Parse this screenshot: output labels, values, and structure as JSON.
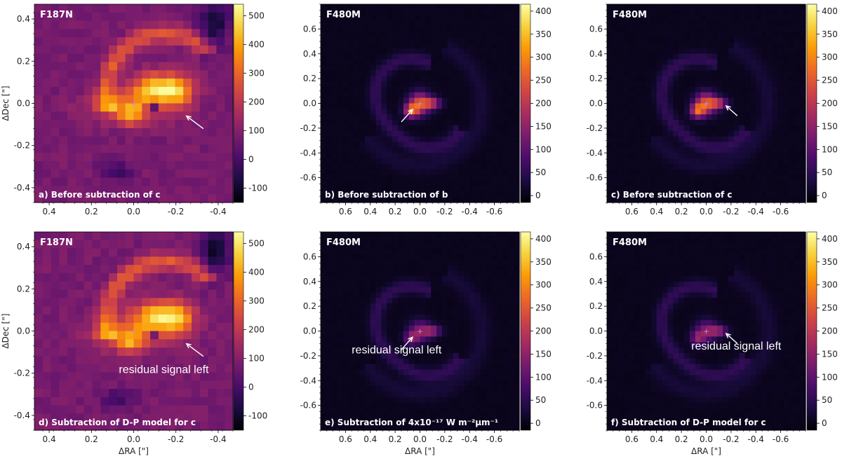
{
  "figure": {
    "colormap": [
      "#000004",
      "#1b0c41",
      "#4a0c6b",
      "#781c6d",
      "#a52c60",
      "#cf4446",
      "#ed6925",
      "#fb9b06",
      "#f7d13d",
      "#fcffa4"
    ],
    "arrow_color": "#ffffff",
    "center_marker_color": "#cc88dd"
  },
  "chart_data": [
    {
      "id": "a",
      "type": "heatmap",
      "band": "F187N",
      "caption": "a) Before subtraction of c",
      "annotation": "",
      "xlim": [
        0.47,
        -0.47
      ],
      "ylim": [
        -0.47,
        0.47
      ],
      "xticks": [
        "0.4",
        "0.2",
        "0.0",
        "-0.2",
        "-0.4"
      ],
      "xtick_values": [
        0.4,
        0.2,
        0.0,
        -0.2,
        -0.4
      ],
      "yticks": [
        "0.4",
        "0.2",
        "0.0",
        "-0.2",
        "-0.4"
      ],
      "ytick_values": [
        0.4,
        0.2,
        0.0,
        -0.2,
        -0.4
      ],
      "xlabel": "",
      "ylabel": "ΔDec [\"]",
      "colorbar": {
        "min": -150,
        "max": 540,
        "ticks": [
          "500",
          "400",
          "300",
          "200",
          "100",
          "0",
          "-100"
        ],
        "tick_values": [
          500,
          400,
          300,
          200,
          100,
          0,
          -100
        ]
      },
      "arrow": {
        "from": [
          -0.33,
          -0.12
        ],
        "to": [
          -0.25,
          -0.06
        ]
      }
    },
    {
      "id": "b",
      "type": "heatmap",
      "band": "F480M",
      "caption": "b) Before subtraction of b",
      "annotation": "",
      "xlim": [
        0.8,
        -0.8
      ],
      "ylim": [
        -0.8,
        0.8
      ],
      "xticks": [
        "0.6",
        "0.4",
        "0.2",
        "0.0",
        "-0.2",
        "-0.4",
        "-0.6"
      ],
      "xtick_values": [
        0.6,
        0.4,
        0.2,
        0.0,
        -0.2,
        -0.4,
        -0.6
      ],
      "yticks": [
        "0.6",
        "0.4",
        "0.2",
        "0.0",
        "-0.2",
        "-0.4",
        "-0.6"
      ],
      "ytick_values": [
        0.6,
        0.4,
        0.2,
        0.0,
        -0.2,
        -0.4,
        -0.6
      ],
      "xlabel": "",
      "ylabel": "",
      "colorbar": {
        "min": -15,
        "max": 415,
        "ticks": [
          "400",
          "350",
          "300",
          "250",
          "200",
          "150",
          "100",
          "50",
          "0"
        ],
        "tick_values": [
          400,
          350,
          300,
          250,
          200,
          150,
          100,
          50,
          0
        ]
      },
      "arrow": {
        "from": [
          0.15,
          -0.15
        ],
        "to": [
          0.06,
          -0.05
        ]
      }
    },
    {
      "id": "c",
      "type": "heatmap",
      "band": "F480M",
      "caption": "c) Before subtraction of c",
      "annotation": "",
      "xlim": [
        0.8,
        -0.8
      ],
      "ylim": [
        -0.8,
        0.8
      ],
      "xticks": [
        "0.6",
        "0.4",
        "0.2",
        "0.0",
        "-0.2",
        "-0.4",
        "-0.6"
      ],
      "xtick_values": [
        0.6,
        0.4,
        0.2,
        0.0,
        -0.2,
        -0.4,
        -0.6
      ],
      "yticks": [
        "0.6",
        "0.4",
        "0.2",
        "0.0",
        "-0.2",
        "-0.4",
        "-0.6"
      ],
      "ytick_values": [
        0.6,
        0.4,
        0.2,
        0.0,
        -0.2,
        -0.4,
        -0.6
      ],
      "xlabel": "",
      "ylabel": "",
      "colorbar": {
        "min": -15,
        "max": 415,
        "ticks": [
          "400",
          "350",
          "300",
          "250",
          "200",
          "150",
          "100",
          "50",
          "0"
        ],
        "tick_values": [
          400,
          350,
          300,
          250,
          200,
          150,
          100,
          50,
          0
        ]
      },
      "arrow": {
        "from": [
          -0.25,
          -0.1
        ],
        "to": [
          -0.16,
          -0.02
        ]
      }
    },
    {
      "id": "d",
      "type": "heatmap",
      "band": "F187N",
      "caption": "d) Subtraction of D-P model for c",
      "annotation": "residual signal left",
      "xlim": [
        0.47,
        -0.47
      ],
      "ylim": [
        -0.47,
        0.47
      ],
      "xticks": [
        "0.4",
        "0.2",
        "0.0",
        "-0.2",
        "-0.4"
      ],
      "xtick_values": [
        0.4,
        0.2,
        0.0,
        -0.2,
        -0.4
      ],
      "yticks": [
        "0.4",
        "0.2",
        "0.0",
        "-0.2",
        "-0.4"
      ],
      "ytick_values": [
        0.4,
        0.2,
        0.0,
        -0.2,
        -0.4
      ],
      "xlabel": "ΔRA [\"]",
      "ylabel": "ΔDec [\"]",
      "colorbar": {
        "min": -150,
        "max": 540,
        "ticks": [
          "500",
          "400",
          "300",
          "200",
          "100",
          "0",
          "-100"
        ],
        "tick_values": [
          500,
          400,
          300,
          200,
          100,
          0,
          -100
        ]
      },
      "arrow": {
        "from": [
          -0.33,
          -0.12
        ],
        "to": [
          -0.25,
          -0.06
        ]
      }
    },
    {
      "id": "e",
      "type": "heatmap",
      "band": "F480M",
      "caption": "e) Subtraction of 4x10⁻¹⁷ W m⁻²μm⁻¹",
      "annotation": "residual signal left",
      "xlim": [
        0.8,
        -0.8
      ],
      "ylim": [
        -0.8,
        0.8
      ],
      "xticks": [
        "0.6",
        "0.4",
        "0.2",
        "0.0",
        "-0.2",
        "-0.4",
        "-0.6"
      ],
      "xtick_values": [
        0.6,
        0.4,
        0.2,
        0.0,
        -0.2,
        -0.4,
        -0.6
      ],
      "yticks": [
        "0.6",
        "0.4",
        "0.2",
        "0.0",
        "-0.2",
        "-0.4",
        "-0.6"
      ],
      "ytick_values": [
        0.6,
        0.4,
        0.2,
        0.0,
        -0.2,
        -0.4,
        -0.6
      ],
      "xlabel": "ΔRA [\"]",
      "ylabel": "",
      "colorbar": {
        "min": -15,
        "max": 415,
        "ticks": [
          "400",
          "350",
          "300",
          "250",
          "200",
          "150",
          "100",
          "50",
          "0"
        ],
        "tick_values": [
          400,
          350,
          300,
          250,
          200,
          150,
          100,
          50,
          0
        ]
      },
      "arrow": {
        "from": [
          0.15,
          -0.15
        ],
        "to": [
          0.06,
          -0.05
        ]
      }
    },
    {
      "id": "f",
      "type": "heatmap",
      "band": "F480M",
      "caption": "f) Subtraction of D-P model for c",
      "annotation": "residual signal left",
      "xlim": [
        0.8,
        -0.8
      ],
      "ylim": [
        -0.8,
        0.8
      ],
      "xticks": [
        "0.6",
        "0.4",
        "0.2",
        "0.0",
        "-0.2",
        "-0.4",
        "-0.6"
      ],
      "xtick_values": [
        0.6,
        0.4,
        0.2,
        0.0,
        -0.2,
        -0.4,
        -0.6
      ],
      "yticks": [
        "0.6",
        "0.4",
        "0.2",
        "0.0",
        "-0.2",
        "-0.4",
        "-0.6"
      ],
      "ytick_values": [
        0.6,
        0.4,
        0.2,
        0.0,
        -0.2,
        -0.4,
        -0.6
      ],
      "xlabel": "ΔRA [\"]",
      "ylabel": "",
      "colorbar": {
        "min": -15,
        "max": 415,
        "ticks": [
          "400",
          "350",
          "300",
          "250",
          "200",
          "150",
          "100",
          "50",
          "0"
        ],
        "tick_values": [
          400,
          350,
          300,
          250,
          200,
          150,
          100,
          50,
          0
        ]
      },
      "arrow": {
        "from": [
          -0.25,
          -0.1
        ],
        "to": [
          -0.16,
          -0.02
        ]
      }
    }
  ]
}
